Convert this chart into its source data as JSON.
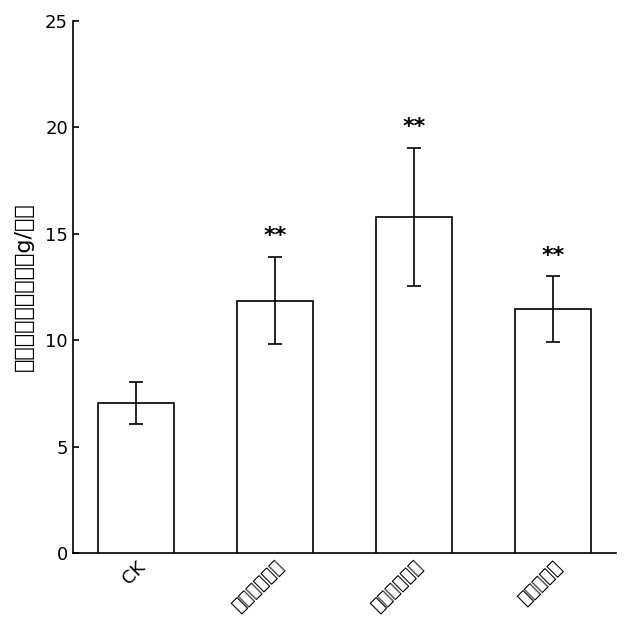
{
  "categories": [
    "CK",
    "光壁无梗囊霉",
    "蜜色无梗囊霉",
    "摩西球囊霉"
  ],
  "values": [
    7.05,
    11.85,
    15.8,
    11.45
  ],
  "errors": [
    1.0,
    2.05,
    3.25,
    1.55
  ],
  "significance": [
    "",
    "**",
    "**",
    "**"
  ],
  "ylabel": "植物地上部生物量（g/株）",
  "ylim": [
    0,
    25
  ],
  "yticks": [
    0,
    5,
    10,
    15,
    20,
    25
  ],
  "bar_color": "#ffffff",
  "bar_edgecolor": "#000000",
  "bar_width": 0.55,
  "fig_width": 6.3,
  "fig_height": 6.3,
  "dpi": 100,
  "title_fontsize": 14,
  "label_fontsize": 16,
  "tick_fontsize": 13,
  "sig_fontsize": 14,
  "background_color": "#ffffff"
}
